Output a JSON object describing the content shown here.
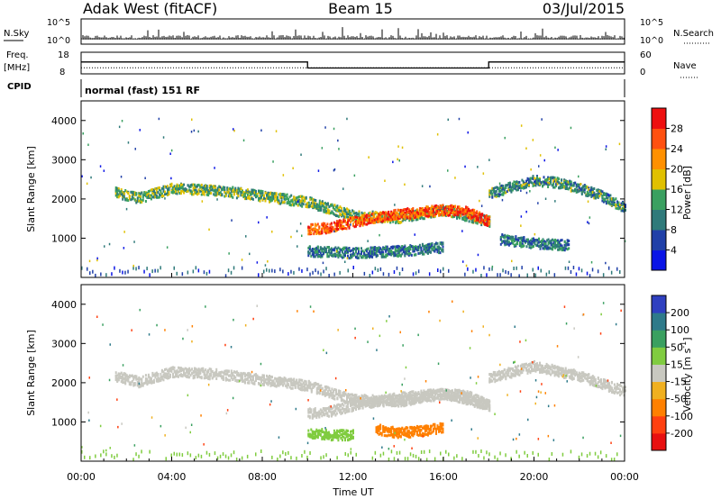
{
  "header": {
    "radar": "Adak West (fitACF)",
    "beam": "Beam 15",
    "date": "03/Jul/2015"
  },
  "params": {
    "nsky_label": "N.Sky",
    "nsky_ticks": [
      "10^5",
      "10^0"
    ],
    "nsearch_label": "N.Search",
    "nsearch_ticks": [
      "10^5",
      "10^0"
    ],
    "freq_label_1": "Freq.",
    "freq_label_2": "[MHz]",
    "freq_ticks": [
      "18",
      "8"
    ],
    "nave_label": "Nave",
    "nave_ticks": [
      "60",
      "0"
    ],
    "cpid_label": "CPID",
    "cpid_text": "normal (fast) 151 RF"
  },
  "axes": {
    "xlabel": "Time UT",
    "x_ticks": [
      "00:00",
      "04:00",
      "08:00",
      "12:00",
      "16:00",
      "20:00",
      "00:00"
    ],
    "ylabel": "Slant Range [km]",
    "y_ticks": [
      "1000",
      "2000",
      "3000",
      "4000"
    ]
  },
  "colorbars": {
    "power": {
      "label": "Power [dB]",
      "ticks": [
        "4",
        "8",
        "12",
        "16",
        "20",
        "24",
        "28"
      ],
      "colors": [
        "#0a14e6",
        "#2040a8",
        "#2f7a7a",
        "#3aa060",
        "#e0c000",
        "#ff9000",
        "#ff5010",
        "#ee1010"
      ]
    },
    "velocity": {
      "label_main": "Velocity [m s",
      "label_sup": "-1",
      "label_end": "]",
      "ticks": [
        "200",
        "100",
        "50",
        "15",
        "-15",
        "-50",
        "-100",
        "-200"
      ],
      "colors": [
        "#2f40c0",
        "#2e7a8a",
        "#3aa060",
        "#80cc40",
        "#c8c8c0",
        "#f0b020",
        "#ff8000",
        "#ff4010",
        "#e81010"
      ]
    }
  },
  "chart_data": [
    {
      "type": "line",
      "title": "N.Sky / N.Search",
      "x": [
        0,
        24
      ],
      "xlim": [
        0,
        24
      ],
      "ylim": [
        0,
        5
      ],
      "yscale": "log",
      "series": [
        {
          "name": "N.Sky",
          "values": [
            1.0,
            1.0
          ]
        },
        {
          "name": "N.Search",
          "values": [
            1.0,
            1.0
          ]
        }
      ]
    },
    {
      "type": "line",
      "title": "Freq. / Nave",
      "xlim": [
        0,
        24
      ],
      "series": [
        {
          "name": "Freq. [MHz]",
          "x": [
            0,
            10,
            10,
            18,
            18,
            24
          ],
          "values": [
            13.5,
            13.5,
            10.7,
            10.7,
            13.5,
            13.5
          ],
          "ylim": [
            8,
            18
          ]
        },
        {
          "name": "Nave",
          "x": [
            0,
            24
          ],
          "values": [
            17,
            17
          ],
          "ylim": [
            0,
            60
          ]
        }
      ]
    },
    {
      "type": "heatmap",
      "title": "Power [dB]",
      "xlabel": "Time UT",
      "ylabel": "Slant Range [km]",
      "xlim": [
        0,
        24
      ],
      "ylim": [
        0,
        4500
      ],
      "colorbar_range": [
        0,
        32
      ],
      "features": [
        {
          "x": [
            1.5,
            2.5,
            4,
            6,
            8,
            10,
            12,
            14,
            16,
            18
          ],
          "y": [
            2200,
            2050,
            2300,
            2250,
            2100,
            1950,
            1600,
            1550,
            1750,
            1450
          ],
          "value": 14
        },
        {
          "x": [
            10,
            11,
            12,
            13,
            14,
            15,
            16,
            17,
            18
          ],
          "y": [
            1250,
            1300,
            1450,
            1550,
            1650,
            1700,
            1750,
            1700,
            1450
          ],
          "value": 26
        },
        {
          "x": [
            10,
            12,
            14,
            16
          ],
          "y": [
            700,
            650,
            700,
            800
          ],
          "value": 10
        },
        {
          "x": [
            18,
            19,
            20,
            21,
            22,
            23,
            24
          ],
          "y": [
            2150,
            2350,
            2500,
            2450,
            2300,
            2100,
            1800
          ],
          "value": 12
        },
        {
          "x": [
            18.5,
            20,
            21.5
          ],
          "y": [
            1000,
            900,
            850
          ],
          "value": 10
        }
      ]
    },
    {
      "type": "heatmap",
      "title": "Velocity [m s-1]",
      "xlabel": "Time UT",
      "ylabel": "Slant Range [km]",
      "xlim": [
        0,
        24
      ],
      "ylim": [
        0,
        4500
      ],
      "colorbar_range": [
        -200,
        200
      ],
      "features": [
        {
          "x": [
            1.5,
            2.5,
            4,
            6,
            8,
            10,
            12,
            14,
            16,
            18
          ],
          "y": [
            2200,
            2050,
            2300,
            2250,
            2100,
            1950,
            1600,
            1550,
            1750,
            1450
          ],
          "value": 0
        },
        {
          "x": [
            10,
            11,
            12,
            13,
            14,
            15,
            16,
            17,
            18
          ],
          "y": [
            1250,
            1300,
            1450,
            1550,
            1650,
            1700,
            1750,
            1700,
            1450
          ],
          "value": 0
        },
        {
          "x": [
            13,
            14,
            15,
            16
          ],
          "y": [
            850,
            750,
            800,
            900
          ],
          "value": -60
        },
        {
          "x": [
            10,
            11,
            12
          ],
          "y": [
            750,
            700,
            700
          ],
          "value": 40
        },
        {
          "x": [
            18,
            20,
            22,
            24
          ],
          "y": [
            2150,
            2450,
            2200,
            1800
          ],
          "value": 0
        }
      ]
    }
  ]
}
